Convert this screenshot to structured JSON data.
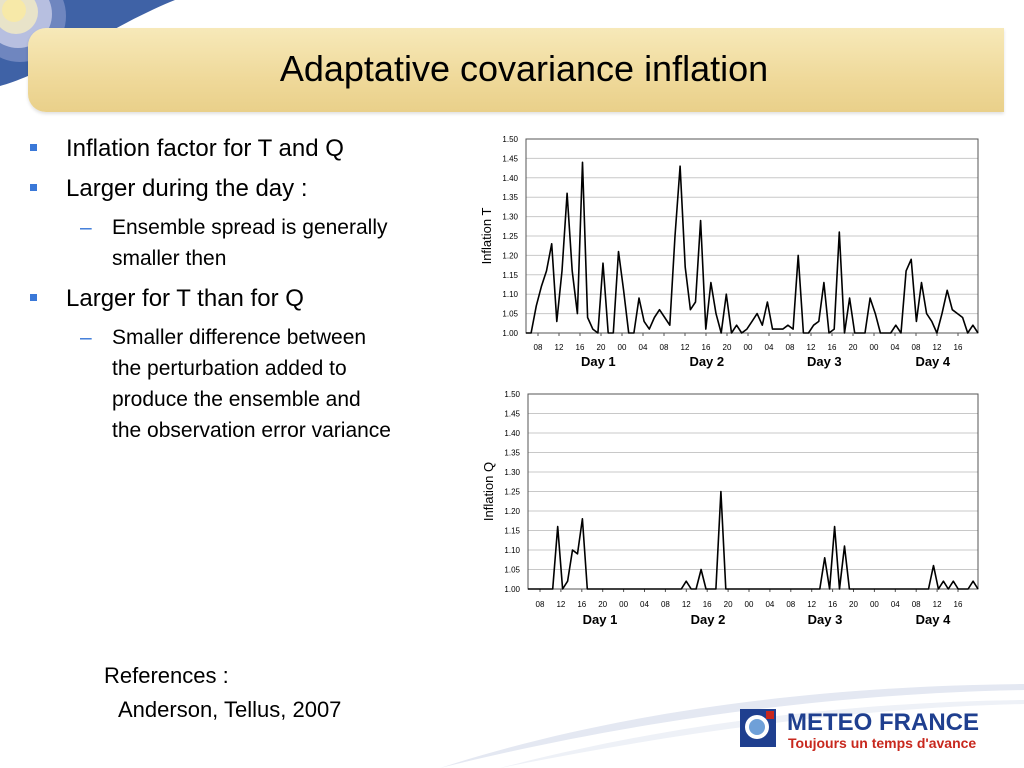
{
  "slide": {
    "title": "Adaptative covariance inflation",
    "bullets": [
      {
        "level": 1,
        "text": "Inflation factor for T and Q"
      },
      {
        "level": 1,
        "text": "Larger during the day :"
      },
      {
        "level": 2,
        "lines": [
          "Ensemble spread is generally",
          "smaller then"
        ]
      },
      {
        "level": 1,
        "text": "Larger for T than for Q"
      },
      {
        "level": 2,
        "lines": [
          "Smaller difference between",
          "the perturbation added to",
          "produce the ensemble and",
          "the observation error variance"
        ]
      }
    ],
    "references_label": "References :",
    "reference": "Anderson, Tellus, 2007"
  },
  "logo": {
    "name": "METEO FRANCE",
    "tagline": "Toujours un temps d'avance",
    "colors": {
      "name": "#1f3f8f",
      "tagline": "#c8281e"
    }
  },
  "chart_data": [
    {
      "type": "line",
      "ylabel": "Inflation T",
      "ylim": [
        1.0,
        1.5
      ],
      "yticks": [
        "1.00",
        "1.05",
        "1.10",
        "1.15",
        "1.20",
        "1.25",
        "1.30",
        "1.35",
        "1.40",
        "1.45",
        "1.50"
      ],
      "xticks": [
        "08",
        "12",
        "16",
        "20",
        "00",
        "04",
        "08",
        "12",
        "16",
        "20",
        "00",
        "04",
        "08",
        "12",
        "16",
        "20",
        "00",
        "04",
        "08",
        "12",
        "16"
      ],
      "day_labels": [
        "Day 1",
        "Day 2",
        "Day 3",
        "Day 4"
      ],
      "series": [
        {
          "values": [
            1.0,
            1.0,
            1.07,
            1.12,
            1.16,
            1.23,
            1.03,
            1.16,
            1.36,
            1.16,
            1.05,
            1.44,
            1.04,
            1.01,
            1.0,
            1.18,
            1.0,
            1.0,
            1.21,
            1.11,
            1.0,
            1.0,
            1.09,
            1.03,
            1.01,
            1.04,
            1.06,
            1.04,
            1.02,
            1.25,
            1.43,
            1.17,
            1.06,
            1.08,
            1.29,
            1.01,
            1.13,
            1.05,
            1.0,
            1.1,
            1.0,
            1.02,
            1.0,
            1.01,
            1.03,
            1.05,
            1.02,
            1.08,
            1.01,
            1.01,
            1.01,
            1.02,
            1.01,
            1.2,
            1.0,
            1.0,
            1.02,
            1.03,
            1.13,
            1.0,
            1.01,
            1.26,
            1.0,
            1.09,
            1.0,
            1.0,
            1.0,
            1.09,
            1.05,
            1.0,
            1.0,
            1.0,
            1.02,
            1.0,
            1.16,
            1.19,
            1.03,
            1.13,
            1.05,
            1.03,
            1.0,
            1.05,
            1.11,
            1.06,
            1.05,
            1.04,
            1.0,
            1.02,
            1.0
          ]
        }
      ]
    },
    {
      "type": "line",
      "ylabel": "Inflation Q",
      "ylim": [
        1.0,
        1.5
      ],
      "yticks": [
        "1.00",
        "1.05",
        "1.10",
        "1.15",
        "1.20",
        "1.25",
        "1.30",
        "1.35",
        "1.40",
        "1.45",
        "1.50"
      ],
      "xticks": [
        "08",
        "12",
        "16",
        "20",
        "00",
        "04",
        "08",
        "12",
        "16",
        "20",
        "00",
        "04",
        "08",
        "12",
        "16",
        "20",
        "00",
        "04",
        "08",
        "12",
        "16"
      ],
      "day_labels": [
        "Day 1",
        "Day 2",
        "Day 3",
        "Day 4"
      ],
      "series": [
        {
          "values": [
            1.0,
            1.0,
            1.0,
            1.0,
            1.0,
            1.0,
            1.16,
            1.0,
            1.02,
            1.1,
            1.09,
            1.18,
            1.0,
            1.0,
            1.0,
            1.0,
            1.0,
            1.0,
            1.0,
            1.0,
            1.0,
            1.0,
            1.0,
            1.0,
            1.0,
            1.0,
            1.0,
            1.0,
            1.0,
            1.0,
            1.0,
            1.0,
            1.02,
            1.0,
            1.0,
            1.05,
            1.0,
            1.0,
            1.0,
            1.25,
            1.0,
            1.0,
            1.0,
            1.0,
            1.0,
            1.0,
            1.0,
            1.0,
            1.0,
            1.0,
            1.0,
            1.0,
            1.0,
            1.0,
            1.0,
            1.0,
            1.0,
            1.0,
            1.0,
            1.0,
            1.08,
            1.0,
            1.16,
            1.0,
            1.11,
            1.0,
            1.0,
            1.0,
            1.0,
            1.0,
            1.0,
            1.0,
            1.0,
            1.0,
            1.0,
            1.0,
            1.0,
            1.0,
            1.0,
            1.0,
            1.0,
            1.0,
            1.06,
            1.0,
            1.02,
            1.0,
            1.02,
            1.0,
            1.0,
            1.0,
            1.02,
            1.0
          ]
        }
      ]
    }
  ]
}
